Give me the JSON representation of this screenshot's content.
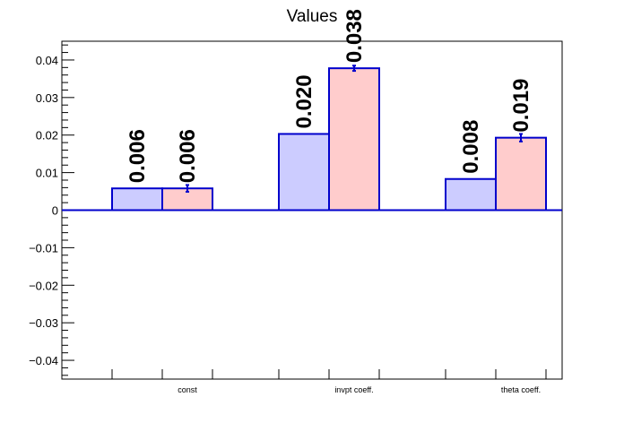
{
  "chart_data": {
    "type": "bar",
    "title": "Values",
    "xlabel": "",
    "ylabel": "",
    "ylim": [
      -0.045,
      0.045
    ],
    "yticks": [
      -0.04,
      -0.03,
      -0.02,
      -0.01,
      0,
      0.01,
      0.02,
      0.03,
      0.04
    ],
    "ytick_labels": [
      "−0.04",
      "−0.03",
      "−0.02",
      "−0.01",
      "0",
      "0.01",
      "0.02",
      "0.03",
      "0.04"
    ],
    "categories": [
      "const",
      "invpt coeff.",
      "theta coeff."
    ],
    "series": [
      {
        "values": [
          0.0058,
          0.0203,
          0.0083
        ],
        "errors": [
          0,
          0,
          0
        ],
        "labels": [
          "0.006",
          "0.020",
          "0.008"
        ],
        "fill": "#ccccff",
        "stroke": "#0000cc"
      },
      {
        "values": [
          0.0058,
          0.0378,
          0.0193
        ],
        "errors": [
          0.0009,
          0.0007,
          0.001
        ],
        "labels": [
          "0.006",
          "0.038",
          "0.019"
        ],
        "fill": "#ffcccc",
        "stroke": "#0000cc"
      }
    ],
    "grid": false,
    "legend": "none",
    "axis_color": "#000000",
    "bar_edge_color": "#0000cc"
  }
}
